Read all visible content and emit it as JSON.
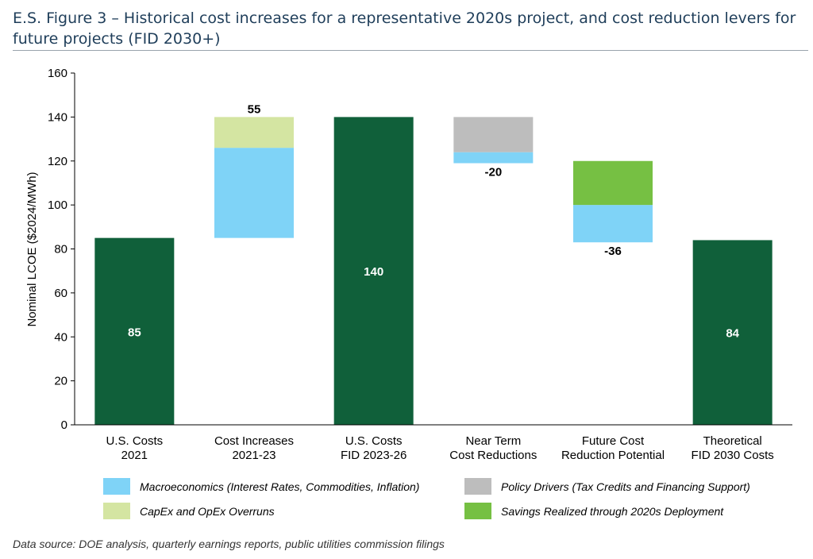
{
  "figure": {
    "title": "E.S. Figure 3 – Historical cost increases for a representative 2020s project, and cost reduction levers for future projects (FID  2030+)",
    "source": "Data source: DOE analysis, quarterly earnings reports, public utilities commission filings"
  },
  "colors": {
    "total": "#10603a",
    "macro": "#7fd3f7",
    "capex": "#d4e5a2",
    "policy": "#bdbdbd",
    "savings": "#76c043",
    "axis": "#000000",
    "title": "#1f3e5a"
  },
  "chart_data": {
    "type": "bar",
    "subtype": "waterfall",
    "title": "",
    "xlabel": "",
    "ylabel": "Nominal LCOE ($2024/MWh)",
    "ylim": [
      0,
      160
    ],
    "yticks": [
      "0",
      "20",
      "40",
      "60",
      "80",
      "100",
      "120",
      "140",
      "160"
    ],
    "grid": false,
    "legend_position": "bottom",
    "categories": [
      [
        "U.S. Costs",
        "2021"
      ],
      [
        "Cost Increases",
        "2021-23"
      ],
      [
        "U.S. Costs",
        "FID 2023-26"
      ],
      [
        "Near Term",
        "Cost Reductions"
      ],
      [
        "Future Cost",
        "Reduction Potential"
      ],
      [
        "Theoretical",
        "FID 2030 Costs"
      ]
    ],
    "bars": [
      {
        "segments": [
          {
            "series": "total",
            "from": 0,
            "to": 85
          }
        ],
        "label": "85",
        "label_pos": "inside"
      },
      {
        "segments": [
          {
            "series": "macro",
            "from": 85,
            "to": 126
          },
          {
            "series": "capex",
            "from": 126,
            "to": 140
          }
        ],
        "label": "55",
        "label_pos": "above"
      },
      {
        "segments": [
          {
            "series": "total",
            "from": 0,
            "to": 140
          }
        ],
        "label": "140",
        "label_pos": "inside"
      },
      {
        "segments": [
          {
            "series": "macro",
            "from": 119,
            "to": 124
          },
          {
            "series": "policy",
            "from": 124,
            "to": 140
          }
        ],
        "label": "-20",
        "label_pos": "below"
      },
      {
        "segments": [
          {
            "series": "macro",
            "from": 83,
            "to": 100
          },
          {
            "series": "savings",
            "from": 100,
            "to": 120
          }
        ],
        "label": "-36",
        "label_pos": "below"
      },
      {
        "segments": [
          {
            "series": "total",
            "from": 0,
            "to": 84
          }
        ],
        "label": "84",
        "label_pos": "inside"
      }
    ],
    "legend": [
      {
        "series": "macro",
        "label": "Macroeconomics (Interest Rates, Commodities, Inflation)"
      },
      {
        "series": "policy",
        "label": "Policy Drivers (Tax Credits and Financing Support)"
      },
      {
        "series": "capex",
        "label": "CapEx and OpEx Overruns"
      },
      {
        "series": "savings",
        "label": "Savings Realized through 2020s Deployment"
      }
    ]
  }
}
